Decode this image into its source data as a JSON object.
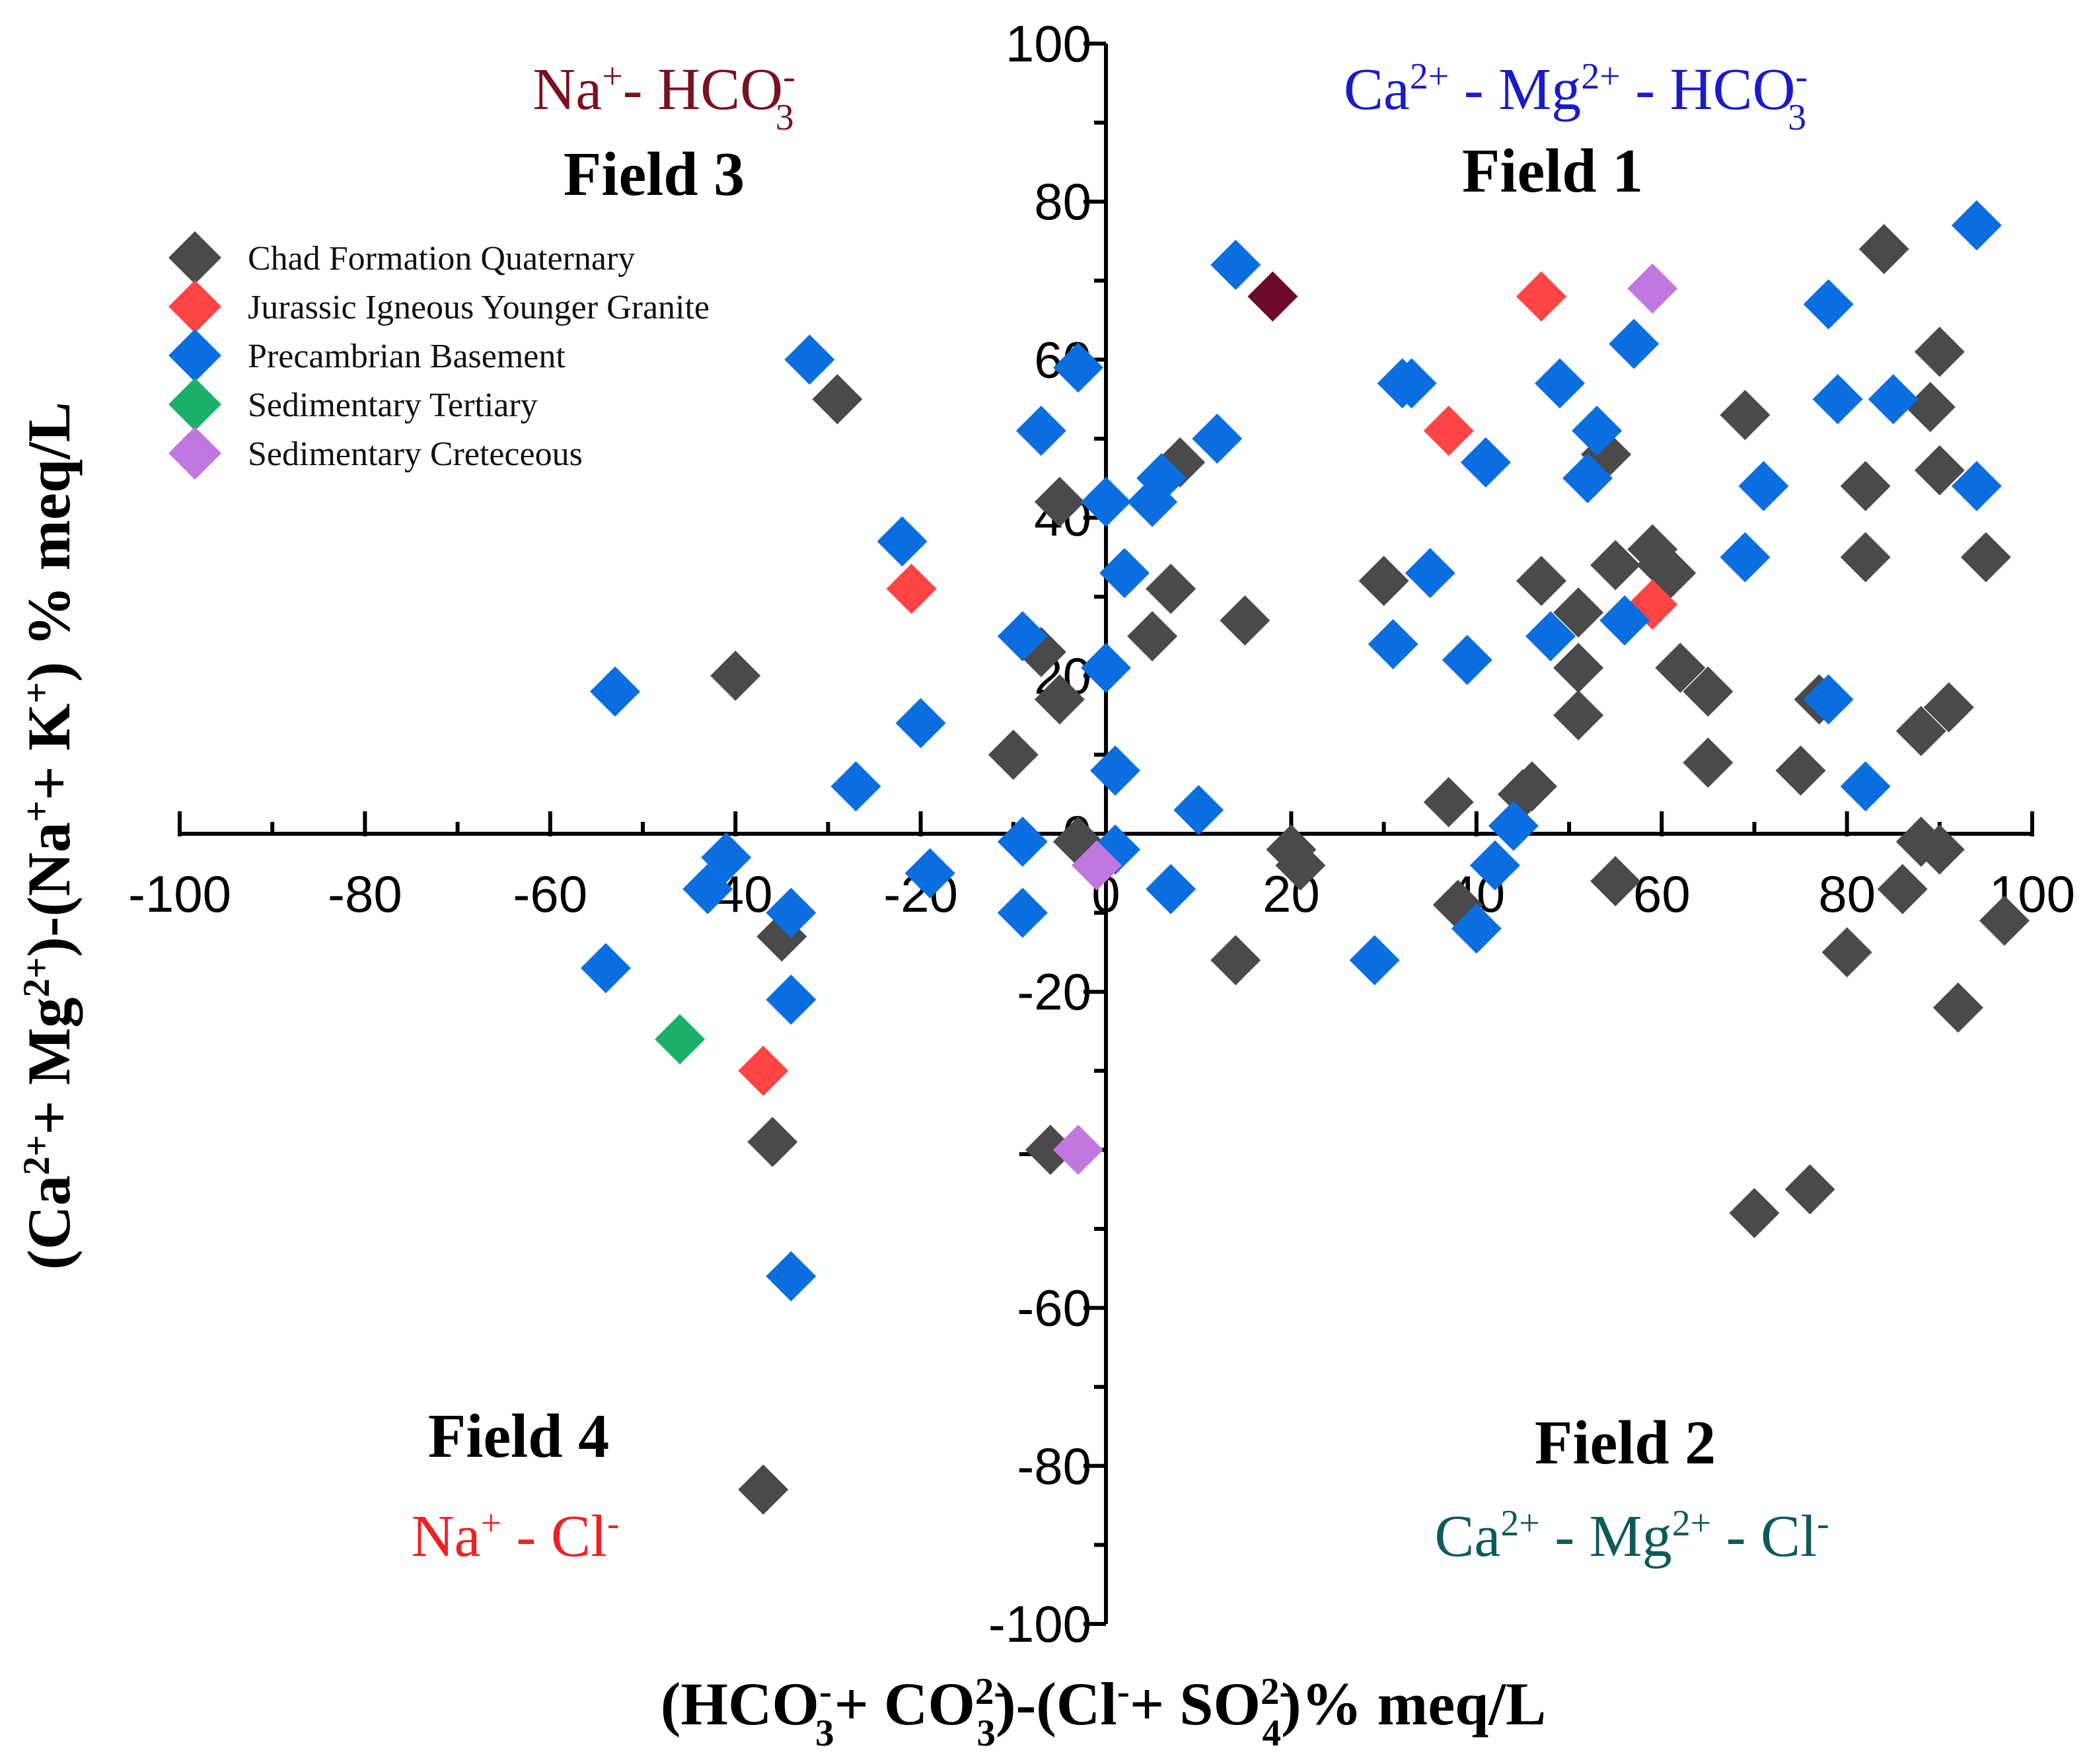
{
  "chart_data": {
    "type": "scatter",
    "xlim": [
      -100,
      100
    ],
    "ylim": [
      -100,
      100
    ],
    "x_ticks": [
      "-100",
      "-80",
      "-60",
      "-40",
      "-20",
      "0",
      "20",
      "40",
      "60",
      "80",
      "100"
    ],
    "y_ticks": [
      "100",
      "80",
      "60",
      "40",
      "20",
      "0",
      "-20",
      "-40",
      "-60",
      "-80",
      "-100"
    ],
    "x_tick_values": [
      -100,
      -80,
      -60,
      -40,
      -20,
      0,
      20,
      40,
      60,
      80,
      100
    ],
    "y_tick_values": [
      100,
      80,
      60,
      40,
      20,
      0,
      -20,
      -40,
      -60,
      -80,
      -100
    ],
    "xlabel": {
      "part1": "(HCO",
      "part1_sup": "-",
      "part1_sub": "3",
      "part2": "+ CO",
      "part2_sup": "2-",
      "part2_sub": "3",
      "part3": ")-(Cl",
      "part3_sup": "-",
      "part4": "+ SO",
      "part4_sup": "2-",
      "part4_sub": "4",
      "part5": ")% meq/L"
    },
    "ylabel": {
      "part1": "(Ca",
      "part1_sup": "2+",
      "part2": "+ Mg",
      "part2_sup": "2+",
      "part3": ")-(Na",
      "part3_sup": "+",
      "part4": "+ K",
      "part4_sup": "+",
      "part5": ") % meq/L"
    },
    "fields": {
      "field1": {
        "title": "Field 1",
        "ion": "Ca2+ - Mg2+ - HCO3-",
        "ion_color": "#1a1acc",
        "ion_parts": {
          "a": "Ca",
          "a_sup": "2+",
          "b": " - Mg",
          "b_sup": "2+",
          "c": " - HCO",
          "c_sup": "-",
          "c_sub": "3"
        }
      },
      "field2": {
        "title": "Field 2",
        "ion": "Ca2+ - Mg2+ - Cl-",
        "ion_color": "#0e5a58",
        "ion_parts": {
          "a": "Ca",
          "a_sup": "2+",
          "b": " - Mg",
          "b_sup": "2+",
          "c": " - Cl",
          "c_sup": "-"
        }
      },
      "field3": {
        "title": "Field 3",
        "ion": "Na+- HCO3-",
        "ion_color": "#7a1020",
        "ion_parts": {
          "a": "Na",
          "a_sup": "+",
          "b": "- HCO",
          "b_sup": "-",
          "b_sub": "3"
        }
      },
      "field4": {
        "title": "Field 4",
        "ion": "Na+ - Cl-",
        "ion_color": "#ee2222",
        "ion_parts": {
          "a": "Na",
          "a_sup": "+",
          "b": " - Cl",
          "b_sup": "-"
        }
      }
    },
    "legend_position": "top-left",
    "grid": false,
    "series": [
      {
        "name": "Chad Formation Quaternary",
        "color": "#4a4a4a",
        "points": [
          [
            -29,
            55
          ],
          [
            -40,
            20
          ],
          [
            -35,
            -13
          ],
          [
            -36,
            -39
          ],
          [
            -37,
            -83
          ],
          [
            -10,
            10
          ],
          [
            -7,
            23
          ],
          [
            -5,
            42
          ],
          [
            -5,
            17
          ],
          [
            -3,
            -1
          ],
          [
            -6,
            -40
          ],
          [
            5,
            25
          ],
          [
            7,
            31
          ],
          [
            8,
            47
          ],
          [
            15,
            27
          ],
          [
            14,
            -16
          ],
          [
            20,
            -2
          ],
          [
            21,
            -4
          ],
          [
            30,
            32
          ],
          [
            37,
            4
          ],
          [
            38,
            -9
          ],
          [
            47,
            32
          ],
          [
            46,
            6
          ],
          [
            45,
            5
          ],
          [
            51,
            28
          ],
          [
            51,
            21
          ],
          [
            51,
            15
          ],
          [
            54,
            48
          ],
          [
            55,
            34
          ],
          [
            55,
            -6
          ],
          [
            59,
            36
          ],
          [
            60,
            34
          ],
          [
            61,
            33
          ],
          [
            62,
            21
          ],
          [
            65,
            18
          ],
          [
            65,
            9
          ],
          [
            69,
            53
          ],
          [
            70,
            -48
          ],
          [
            75,
            8
          ],
          [
            76,
            -45
          ],
          [
            77,
            17
          ],
          [
            82,
            35
          ],
          [
            82,
            44
          ],
          [
            84,
            74
          ],
          [
            80,
            -15
          ],
          [
            86,
            -7
          ],
          [
            88,
            -1
          ],
          [
            88,
            13
          ],
          [
            89,
            54
          ],
          [
            90,
            61
          ],
          [
            90,
            46
          ],
          [
            90,
            -2
          ],
          [
            91,
            16
          ],
          [
            92,
            -22
          ],
          [
            95,
            35
          ],
          [
            97,
            -11
          ]
        ]
      },
      {
        "name": "Jurassic Igneous Younger Granite",
        "color": "#ff4444",
        "points": [
          [
            -21,
            31
          ],
          [
            -37,
            -30
          ],
          [
            37,
            51
          ],
          [
            47,
            68
          ],
          [
            59,
            29
          ]
        ]
      },
      {
        "name": "Precambrian Basement",
        "color": "#0a6ee0",
        "points": [
          [
            -32,
            60
          ],
          [
            -53,
            18
          ],
          [
            -54,
            -17
          ],
          [
            -43,
            -7
          ],
          [
            -41,
            -3
          ],
          [
            -34,
            -10
          ],
          [
            -34,
            -21
          ],
          [
            -34,
            -56
          ],
          [
            -27,
            6
          ],
          [
            -22,
            37
          ],
          [
            -20,
            14
          ],
          [
            -19,
            -5
          ],
          [
            -9,
            -1
          ],
          [
            -9,
            -10
          ],
          [
            -9,
            25
          ],
          [
            -7,
            51
          ],
          [
            -3,
            59
          ],
          [
            0,
            42
          ],
          [
            0,
            21
          ],
          [
            1,
            8
          ],
          [
            1,
            -2
          ],
          [
            2,
            33
          ],
          [
            5,
            42
          ],
          [
            6,
            45
          ],
          [
            7,
            -7
          ],
          [
            10,
            3
          ],
          [
            12,
            50
          ],
          [
            14,
            72
          ],
          [
            31,
            24
          ],
          [
            29,
            -16
          ],
          [
            32,
            57
          ],
          [
            33,
            57
          ],
          [
            35,
            33
          ],
          [
            39,
            22
          ],
          [
            40,
            -12
          ],
          [
            41,
            47
          ],
          [
            42,
            -4
          ],
          [
            44,
            1
          ],
          [
            48,
            25
          ],
          [
            49,
            57
          ],
          [
            52,
            45
          ],
          [
            53,
            51
          ],
          [
            56,
            27
          ],
          [
            57,
            62
          ],
          [
            69,
            35
          ],
          [
            71,
            44
          ],
          [
            78,
            17
          ],
          [
            78,
            67
          ],
          [
            79,
            55
          ],
          [
            82,
            6
          ],
          [
            85,
            55
          ],
          [
            94,
            77
          ],
          [
            94,
            44
          ]
        ]
      },
      {
        "name": "Sedimentary Tertiary",
        "color": "#1ab06a",
        "points": [
          [
            -46,
            -26
          ]
        ]
      },
      {
        "name": "Sedimentary Creteceous",
        "color": "#c078e0",
        "points": [
          [
            -1,
            -4
          ],
          [
            -3,
            -40
          ],
          [
            59,
            69
          ]
        ]
      },
      {
        "name": "",
        "color": "#6b0a2a",
        "points": [
          [
            18,
            68
          ]
        ]
      }
    ]
  }
}
